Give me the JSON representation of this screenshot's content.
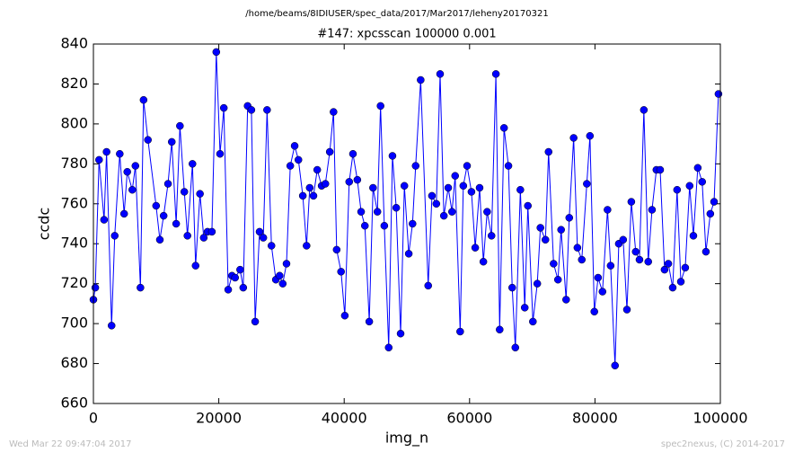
{
  "chart_data": {
    "type": "line",
    "header": "/home/beams/8IDIUSER/spec_data/2017/Mar2017/leheny20170321",
    "title": "#147: xpcsscan 100000 0.001",
    "xlabel": "img_n",
    "ylabel": "ccdc",
    "footer_left": "Wed Mar 22 09:47:04 2017",
    "footer_right": "spec2nexus, (C) 2014-2017",
    "xlim": [
      0,
      100000
    ],
    "xticks": [
      0,
      20000,
      40000,
      60000,
      80000,
      100000
    ],
    "ylim": [
      660,
      840
    ],
    "yticks": [
      660,
      680,
      700,
      720,
      740,
      760,
      780,
      800,
      820,
      840
    ],
    "grid": false,
    "x": [
      0,
      300,
      900,
      1700,
      2100,
      2900,
      3400,
      4200,
      4900,
      5400,
      6200,
      6700,
      7500,
      8000,
      8700,
      10000,
      10600,
      11200,
      11900,
      12500,
      13200,
      13800,
      14500,
      15000,
      15800,
      16300,
      17000,
      17600,
      18200,
      18900,
      19600,
      20200,
      20800,
      21500,
      22100,
      22600,
      23400,
      23900,
      24600,
      25200,
      25800,
      26500,
      27100,
      27700,
      28400,
      29100,
      29700,
      30200,
      30800,
      31400,
      32100,
      32700,
      33400,
      34000,
      34500,
      35100,
      35700,
      36400,
      37000,
      37700,
      38300,
      38800,
      39500,
      40100,
      40800,
      41400,
      42100,
      42700,
      43300,
      44000,
      44600,
      45300,
      45800,
      46400,
      47100,
      47700,
      48300,
      49000,
      49600,
      50300,
      50900,
      51400,
      52200,
      53400,
      54000,
      54700,
      55300,
      55900,
      56600,
      57200,
      57700,
      58500,
      59000,
      59600,
      60300,
      60900,
      61600,
      62200,
      62800,
      63500,
      64200,
      64800,
      65500,
      66200,
      66800,
      67300,
      68100,
      68800,
      69300,
      70100,
      70800,
      71300,
      72100,
      72600,
      73400,
      74100,
      74600,
      75400,
      75900,
      76600,
      77200,
      77900,
      78700,
      79200,
      79900,
      80500,
      81200,
      82000,
      82500,
      83200,
      83800,
      84500,
      85100,
      85800,
      86500,
      87100,
      87800,
      88500,
      89100,
      89800,
      90400,
      91100,
      91700,
      92400,
      93100,
      93700,
      94400,
      95100,
      95700,
      96400,
      97100,
      97700,
      98400,
      99000,
      99700
    ],
    "series": [
      {
        "name": "ccdc",
        "color": "#0000ff",
        "values": [
          712,
          718,
          782,
          752,
          786,
          699,
          744,
          785,
          755,
          776,
          767,
          779,
          718,
          812,
          792,
          759,
          742,
          754,
          770,
          791,
          750,
          799,
          766,
          744,
          780,
          729,
          765,
          743,
          746,
          746,
          836,
          785,
          808,
          717,
          724,
          723,
          727,
          718,
          809,
          807,
          701,
          746,
          743,
          807,
          739,
          722,
          724,
          720,
          730,
          779,
          789,
          782,
          764,
          739,
          768,
          764,
          777,
          769,
          770,
          786,
          806,
          737,
          726,
          704,
          771,
          785,
          772,
          756,
          749,
          701,
          768,
          756,
          809,
          749,
          688,
          784,
          758,
          695,
          769,
          735,
          750,
          779,
          822,
          719,
          764,
          760,
          825,
          754,
          768,
          756,
          774,
          696,
          769,
          779,
          766,
          738,
          768,
          731,
          756,
          744,
          825,
          697,
          798,
          779,
          718,
          688,
          767,
          708,
          759,
          701,
          720,
          748,
          742,
          786,
          730,
          722,
          747,
          712,
          753,
          793,
          738,
          732,
          770,
          794,
          706,
          723,
          716,
          757,
          729,
          679,
          740,
          742,
          707,
          761,
          736,
          732,
          807,
          731,
          757,
          777,
          777,
          727,
          730,
          718,
          767,
          721,
          728,
          769,
          744,
          778,
          771,
          736,
          755,
          761,
          815
        ]
      }
    ]
  }
}
